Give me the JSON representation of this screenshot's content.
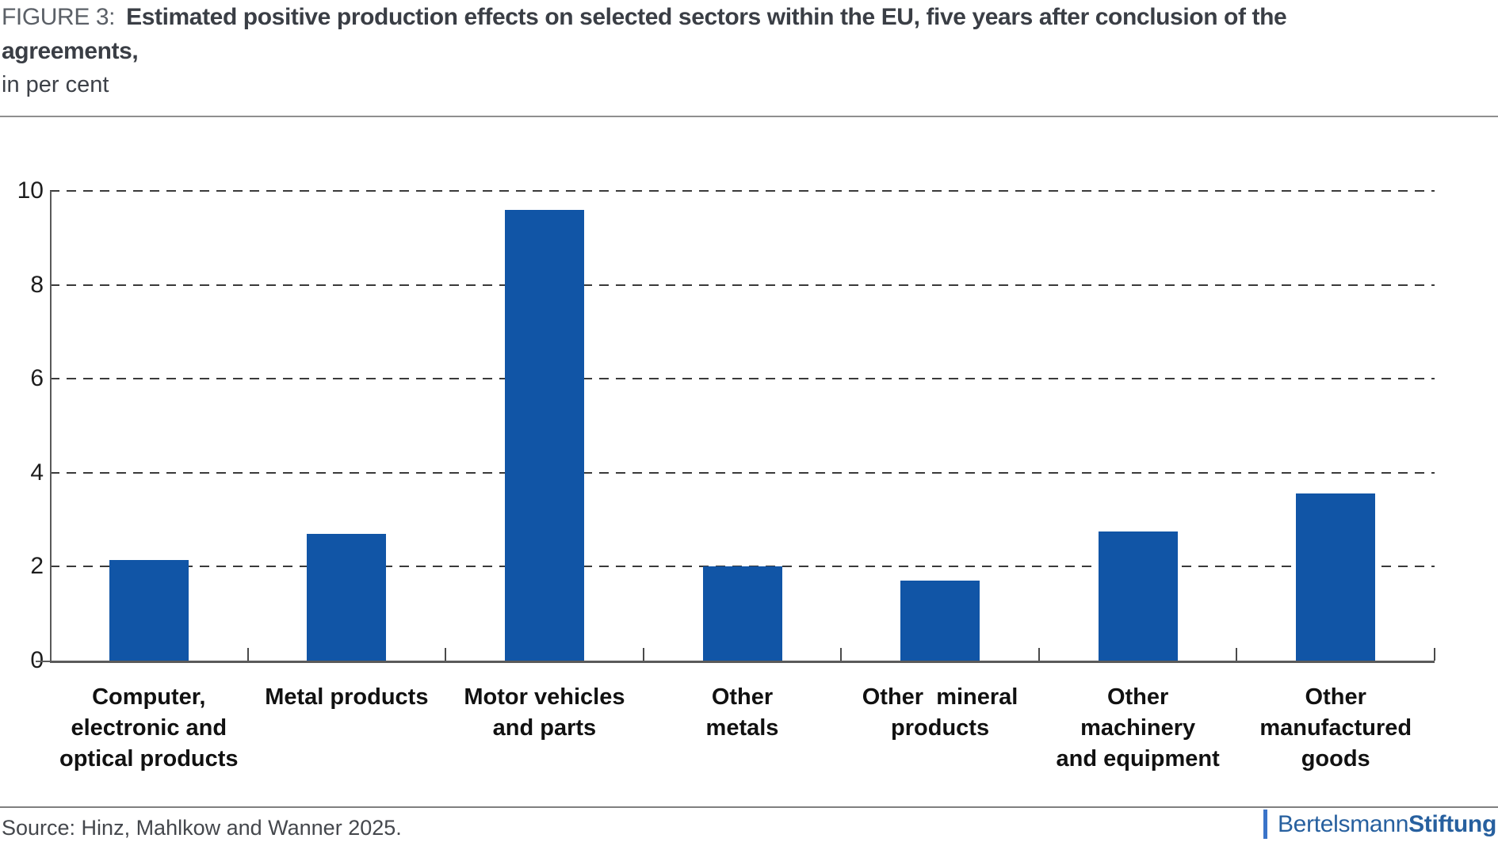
{
  "header": {
    "figure_label": "FIGURE 3:",
    "title_line1": "Estimated positive production effects on selected sectors within the EU, five years after conclusion of the",
    "title_line2": "agreements,",
    "subtitle": "in per cent"
  },
  "chart_data": {
    "type": "bar",
    "title": "Estimated positive production effects on selected sectors within the EU, five years after conclusion of the agreements, in per cent",
    "categories": [
      "Computer,\nelectronic and\noptical products",
      "Metal products",
      "Motor vehicles\nand parts",
      "Other\nmetals",
      "Other  mineral\nproducts",
      "Other\nmachinery\nand equipment",
      "Other\nmanufactured\ngoods"
    ],
    "values": [
      2.15,
      2.7,
      9.6,
      2.0,
      1.7,
      2.75,
      3.55
    ],
    "xlabel": "",
    "ylabel": "",
    "ylim": [
      0,
      10
    ],
    "yticks": [
      0,
      2,
      4,
      6,
      8,
      10
    ],
    "grid": "horizontal-dashed",
    "legend": "none",
    "bar_color": "#1155A6"
  },
  "footer": {
    "source": "Source: Hinz, Mahlkow and Wanner 2025.",
    "logo_prefix": "Bertelsmann",
    "logo_suffix": "Stiftung"
  },
  "colors": {
    "bar": "#1155A6",
    "logo_text": "#27609F",
    "logo_bar": "#3A74C9",
    "grid": "#3A3A3A",
    "axis": "#5A5A5A"
  }
}
